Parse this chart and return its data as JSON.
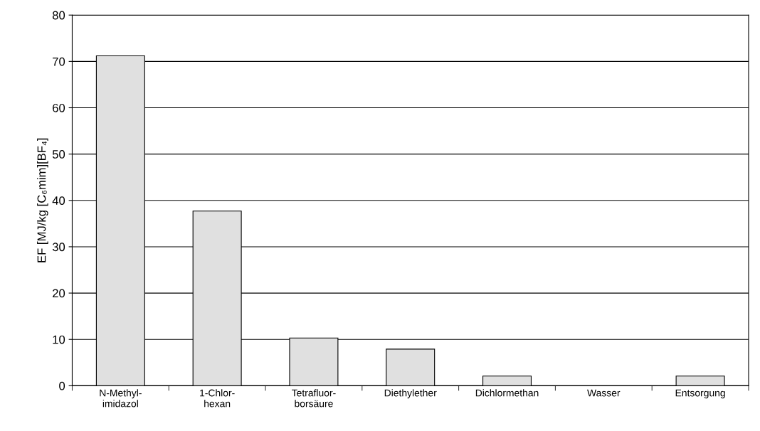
{
  "chart_data": {
    "type": "bar",
    "ylabel": "EF [MJ/kg [C₆mim][BF₄]",
    "categories": [
      "N-Methyl-\nimidazol",
      "1-Chlor-\nhexan",
      "Tetrafluor-\nborsäure",
      "Diethylether",
      "Dichlormethan",
      "Wasser",
      "Entsorgung"
    ],
    "values": [
      71.2,
      37.7,
      10.3,
      7.9,
      2.1,
      0,
      2.1
    ],
    "color": "#e0e0e0",
    "ylim": [
      0,
      80
    ],
    "yticks": [
      0,
      10,
      20,
      30,
      40,
      50,
      60,
      70,
      80
    ],
    "grid": "y",
    "legend": false
  }
}
